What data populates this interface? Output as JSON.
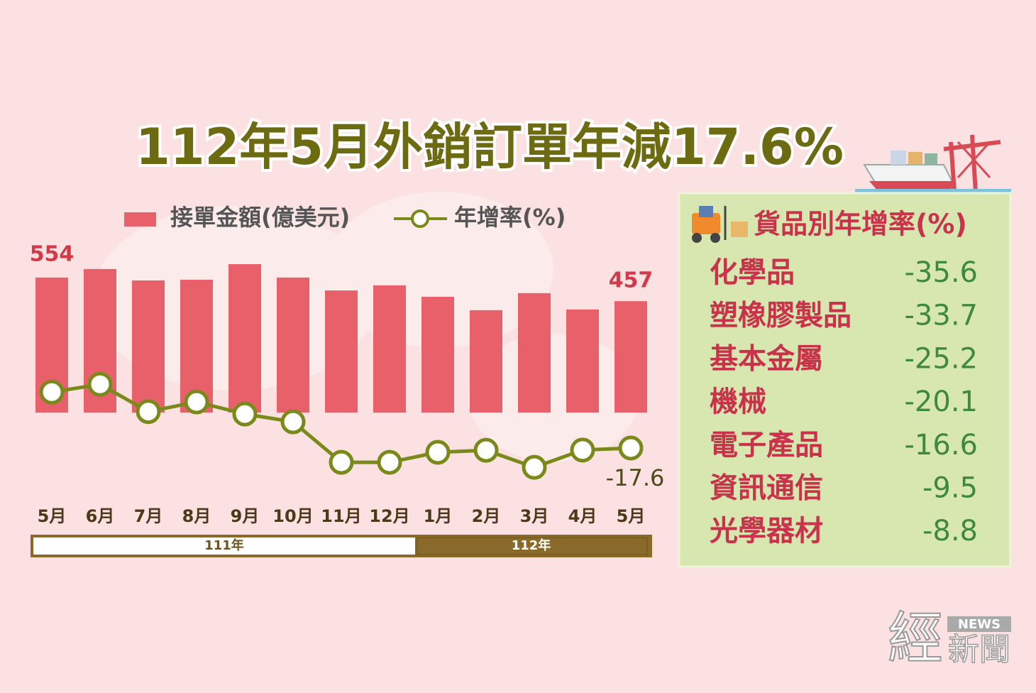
{
  "chart_data": {
    "type": "bar_line",
    "title": "112年5月外銷訂單年減17.6%",
    "categories": [
      "5月",
      "6月",
      "7月",
      "8月",
      "9月",
      "10月",
      "11月",
      "12月",
      "1月",
      "2月",
      "3月",
      "4月",
      "5月"
    ],
    "periods": [
      "111年",
      "112年"
    ],
    "series": [
      {
        "name": "接單金額(億美元)",
        "color": "#e8606a",
        "values": [
          554,
          589,
          542,
          545,
          609,
          554,
          501,
          522,
          475,
          420,
          490,
          423,
          457
        ]
      },
      {
        "name": "年增率(%)",
        "color": "#7a8a1a",
        "axis": "y2",
        "values": [
          12.5,
          16.7,
          2.0,
          7.2,
          0.7,
          -3.5,
          -25.3,
          -25.3,
          -19.9,
          -18.8,
          -28.0,
          -18.7,
          -17.6
        ]
      }
    ],
    "ylim": [
      0,
      644
    ],
    "y2lim": [
      -44,
      86
    ]
  },
  "table": {
    "title": "貨品別年增率(%)",
    "rows": [
      [
        "化學品",
        -35.6
      ],
      [
        "塑橡膠製品",
        -33.7
      ],
      [
        "基本金屬",
        -25.2
      ],
      [
        "機械",
        -20.1
      ],
      [
        "電子產品",
        -16.6
      ],
      [
        "資訊通信",
        -9.5
      ],
      [
        "光學器材",
        -8.8
      ]
    ]
  },
  "logo": {
    "main": "經",
    "tag": "NEWS",
    "sub": "新聞"
  }
}
